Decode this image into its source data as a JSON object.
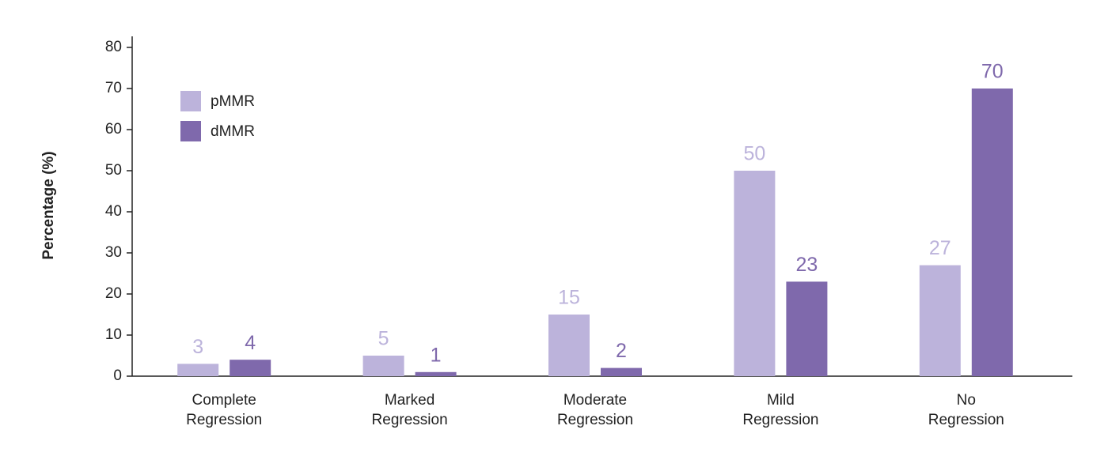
{
  "chart_data": {
    "type": "bar",
    "y_label": "Percentage (%)",
    "categories": [
      [
        "Complete",
        "Regression"
      ],
      [
        "Marked",
        "Regression"
      ],
      [
        "Moderate",
        "Regression"
      ],
      [
        "Mild",
        "Regression"
      ],
      [
        "No",
        "Regression"
      ]
    ],
    "series": [
      {
        "name": "pMMR",
        "color": "#bcb3db",
        "values": [
          3,
          5,
          15,
          50,
          27
        ]
      },
      {
        "name": "dMMR",
        "color": "#7f69ac",
        "values": [
          4,
          1,
          2,
          23,
          70
        ]
      }
    ],
    "ylim": [
      0,
      80
    ],
    "yticks": [
      0,
      10,
      20,
      30,
      40,
      50,
      60,
      70,
      80
    ],
    "legend": "upper left"
  }
}
